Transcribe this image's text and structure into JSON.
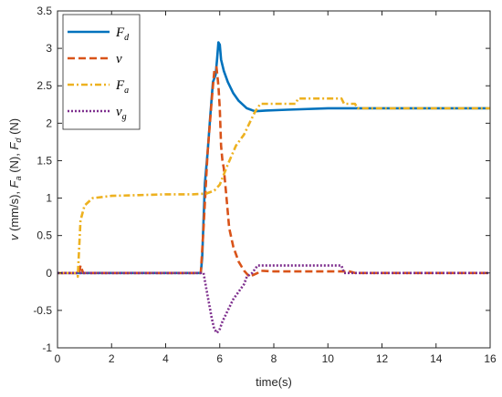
{
  "chart_data": {
    "type": "line",
    "title": "",
    "xlabel": "time(s)",
    "ylabel_parts": [
      {
        "italic": "v",
        "text": " (mm/s), "
      },
      {
        "italic": "F",
        "sub": "a",
        "text": " (N), "
      },
      {
        "italic": "F",
        "sub": "d",
        "text": " (N)"
      }
    ],
    "xlim": [
      0,
      16
    ],
    "ylim": [
      -1,
      3.5
    ],
    "xticks": [
      "0",
      "2",
      "4",
      "6",
      "8",
      "10",
      "12",
      "14",
      "16"
    ],
    "yticks": [
      "-1",
      "-0.5",
      "0",
      "0.5",
      "1",
      "1.5",
      "2",
      "2.5",
      "3",
      "3.5"
    ],
    "grid": false,
    "legend_position": "top-left",
    "series": [
      {
        "name": "F",
        "sub": "d",
        "color": "#0072BD",
        "style": "solid",
        "points": [
          [
            0,
            0
          ],
          [
            5.3,
            0
          ],
          [
            5.35,
            0.2
          ],
          [
            5.45,
            1.2
          ],
          [
            5.55,
            1.6
          ],
          [
            5.65,
            2.1
          ],
          [
            5.75,
            2.55
          ],
          [
            5.85,
            2.65
          ],
          [
            5.9,
            2.85
          ],
          [
            5.95,
            3.08
          ],
          [
            6.0,
            3.05
          ],
          [
            6.05,
            2.85
          ],
          [
            6.15,
            2.7
          ],
          [
            6.3,
            2.55
          ],
          [
            6.5,
            2.4
          ],
          [
            6.7,
            2.3
          ],
          [
            7.0,
            2.2
          ],
          [
            7.3,
            2.16
          ],
          [
            7.7,
            2.17
          ],
          [
            8.5,
            2.18
          ],
          [
            10,
            2.2
          ],
          [
            12,
            2.2
          ],
          [
            16,
            2.2
          ]
        ]
      },
      {
        "name": "v",
        "sub": "",
        "color": "#D95319",
        "style": "dashed",
        "points": [
          [
            0,
            0
          ],
          [
            0.8,
            0
          ],
          [
            0.85,
            0.1
          ],
          [
            0.95,
            0
          ],
          [
            5.3,
            0
          ],
          [
            5.4,
            0.6
          ],
          [
            5.55,
            1.6
          ],
          [
            5.7,
            2.3
          ],
          [
            5.8,
            2.7
          ],
          [
            5.88,
            2.75
          ],
          [
            5.95,
            2.5
          ],
          [
            6.0,
            2.2
          ],
          [
            6.05,
            1.7
          ],
          [
            6.1,
            1.5
          ],
          [
            6.15,
            1.4
          ],
          [
            6.25,
            1.0
          ],
          [
            6.35,
            0.6
          ],
          [
            6.5,
            0.35
          ],
          [
            6.7,
            0.15
          ],
          [
            6.9,
            0.03
          ],
          [
            7.1,
            -0.05
          ],
          [
            7.4,
            0
          ],
          [
            7.5,
            0.03
          ],
          [
            8,
            0.02
          ],
          [
            10.8,
            0.02
          ],
          [
            11,
            0
          ],
          [
            16,
            0
          ]
        ]
      },
      {
        "name": "F",
        "sub": "a",
        "color": "#EDB120",
        "style": "dashdot",
        "points": [
          [
            0,
            0
          ],
          [
            0.7,
            0
          ],
          [
            0.75,
            -0.05
          ],
          [
            0.85,
            0.7
          ],
          [
            1.0,
            0.9
          ],
          [
            1.3,
            1.0
          ],
          [
            2,
            1.03
          ],
          [
            3,
            1.04
          ],
          [
            4,
            1.05
          ],
          [
            5.0,
            1.05
          ],
          [
            5.5,
            1.06
          ],
          [
            5.8,
            1.1
          ],
          [
            6.0,
            1.18
          ],
          [
            6.3,
            1.45
          ],
          [
            6.6,
            1.7
          ],
          [
            6.9,
            1.85
          ],
          [
            7.1,
            2.0
          ],
          [
            7.3,
            2.15
          ],
          [
            7.5,
            2.26
          ],
          [
            8.8,
            2.26
          ],
          [
            8.9,
            2.33
          ],
          [
            10.5,
            2.33
          ],
          [
            10.6,
            2.26
          ],
          [
            11.0,
            2.26
          ],
          [
            11.1,
            2.2
          ],
          [
            16,
            2.2
          ]
        ]
      },
      {
        "name": "v",
        "sub": "g",
        "color": "#7E2F8E",
        "style": "dotted",
        "points": [
          [
            0,
            0
          ],
          [
            5.4,
            0
          ],
          [
            5.5,
            -0.2
          ],
          [
            5.6,
            -0.4
          ],
          [
            5.7,
            -0.6
          ],
          [
            5.8,
            -0.75
          ],
          [
            5.9,
            -0.8
          ],
          [
            6.0,
            -0.75
          ],
          [
            6.1,
            -0.65
          ],
          [
            6.3,
            -0.5
          ],
          [
            6.5,
            -0.35
          ],
          [
            6.7,
            -0.25
          ],
          [
            6.9,
            -0.15
          ],
          [
            7.0,
            -0.05
          ],
          [
            7.2,
            0
          ],
          [
            7.4,
            0.1
          ],
          [
            10.5,
            0.1
          ],
          [
            10.6,
            0
          ],
          [
            16,
            0
          ]
        ]
      }
    ]
  }
}
